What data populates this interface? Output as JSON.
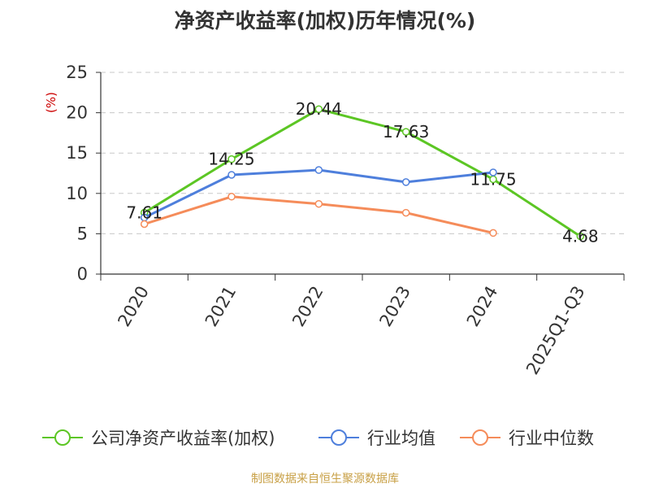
{
  "chart_data": {
    "type": "line",
    "title": "净资产收益率(加权)历年情况(%)",
    "ylabel": "(%)",
    "categories": [
      "2020",
      "2021",
      "2022",
      "2023",
      "2024",
      "2025Q1-Q3"
    ],
    "yticks": [
      "0",
      "5",
      "10",
      "15",
      "20",
      "25"
    ],
    "ylim": [
      0,
      25
    ],
    "grid": true,
    "legend_position": "bottom",
    "series": [
      {
        "name": "公司净资产收益率(加权)",
        "color": "#5cc624",
        "values": [
          7.61,
          14.25,
          20.44,
          17.63,
          11.75,
          4.68
        ],
        "labels": [
          "7.61",
          "14.25",
          "20.44",
          "17.63",
          "11.75",
          "4.68"
        ]
      },
      {
        "name": "行业均值",
        "color": "#4e7fdc",
        "values": [
          7.0,
          12.3,
          12.9,
          11.4,
          12.6,
          null
        ]
      },
      {
        "name": "行业中位数",
        "color": "#f58c5a",
        "values": [
          6.2,
          9.6,
          8.7,
          7.6,
          5.1,
          null
        ]
      }
    ]
  },
  "source": "制图数据来自恒生聚源数据库"
}
